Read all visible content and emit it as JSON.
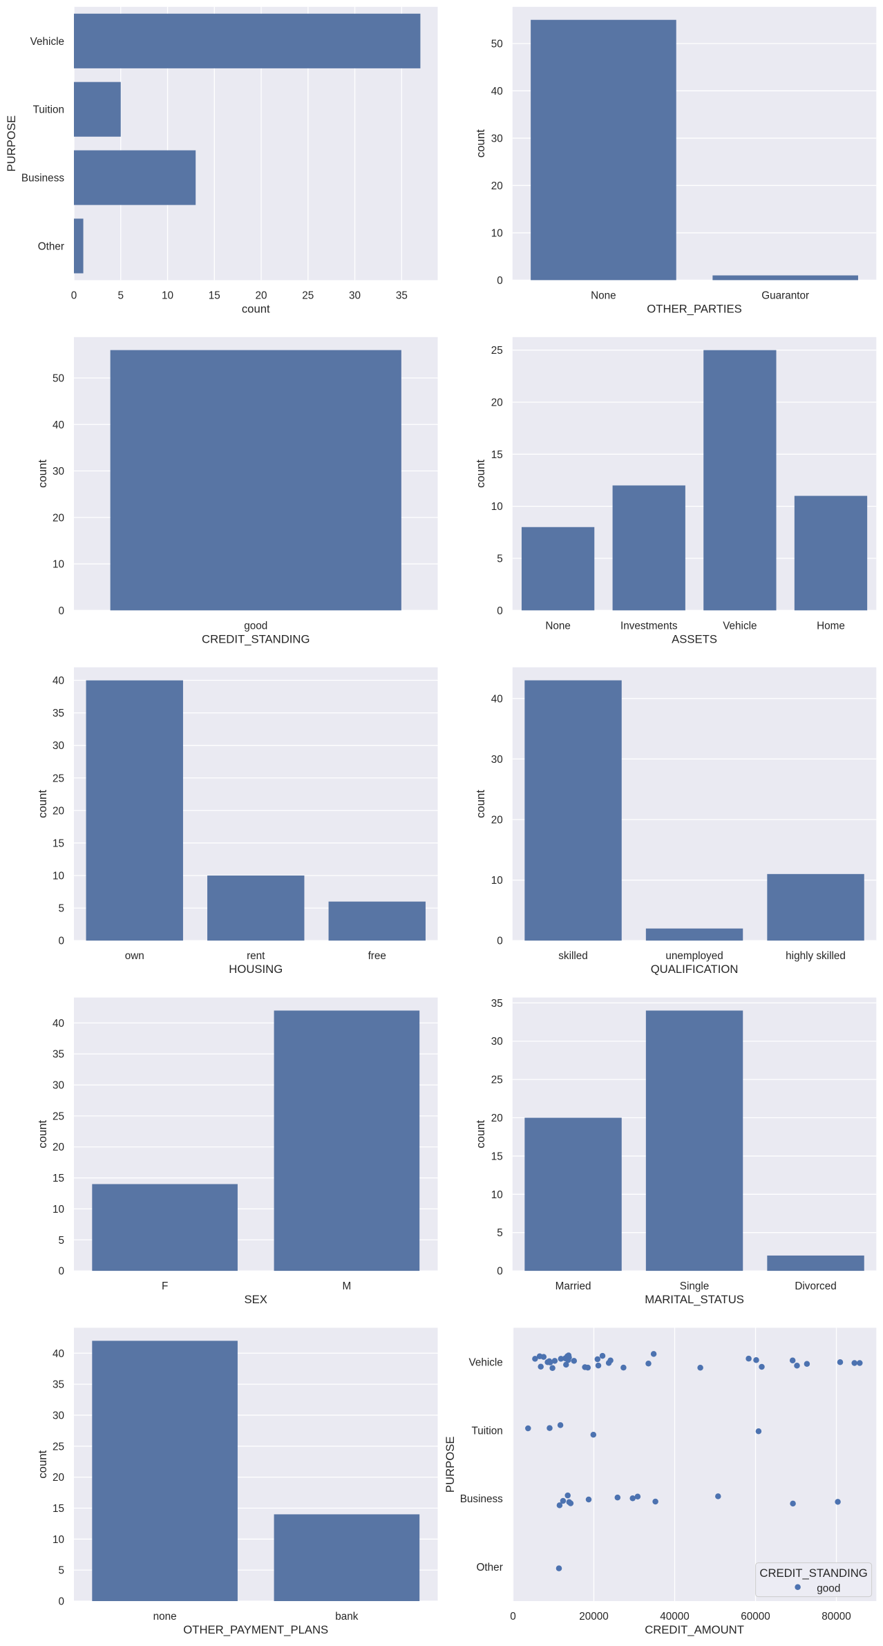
{
  "figure": {
    "kind": "seaborn-countplot-grid",
    "rows": 5,
    "cols": 2,
    "colors": {
      "figure_bg": "#ffffff",
      "axes_bg": "#eaeaf2",
      "grid": "#ffffff",
      "bar": "#5875a4",
      "point": "#4c72b0",
      "text": "#262626",
      "legend_bg": "#ececf4",
      "legend_border": "#cccccc"
    }
  },
  "chart_data": [
    {
      "type": "bar",
      "orientation": "horizontal",
      "title": "",
      "xlabel": "count",
      "ylabel": "PURPOSE",
      "categories": [
        "Vehicle",
        "Tuition",
        "Business",
        "Other"
      ],
      "values": [
        37,
        5,
        13,
        1
      ],
      "value_ticks": [
        0,
        5,
        10,
        15,
        20,
        25,
        30,
        35
      ],
      "value_lim": [
        0,
        38.85
      ],
      "grid": "vertical"
    },
    {
      "type": "bar",
      "orientation": "vertical",
      "title": "",
      "xlabel": "OTHER_PARTIES",
      "ylabel": "count",
      "categories": [
        "None",
        "Guarantor"
      ],
      "values": [
        55,
        1
      ],
      "value_ticks": [
        0,
        10,
        20,
        30,
        40,
        50
      ],
      "value_lim": [
        0,
        57.75
      ],
      "grid": "horizontal"
    },
    {
      "type": "bar",
      "orientation": "vertical",
      "title": "",
      "xlabel": "CREDIT_STANDING",
      "ylabel": "count",
      "categories": [
        "good"
      ],
      "values": [
        56
      ],
      "value_ticks": [
        0,
        10,
        20,
        30,
        40,
        50
      ],
      "value_lim": [
        0,
        58.8
      ],
      "grid": "horizontal"
    },
    {
      "type": "bar",
      "orientation": "vertical",
      "title": "",
      "xlabel": "ASSETS",
      "ylabel": "count",
      "categories": [
        "None",
        "Investments",
        "Vehicle",
        "Home"
      ],
      "values": [
        8,
        12,
        25,
        11
      ],
      "value_ticks": [
        0,
        5,
        10,
        15,
        20,
        25
      ],
      "value_lim": [
        0,
        26.25
      ],
      "grid": "horizontal"
    },
    {
      "type": "bar",
      "orientation": "vertical",
      "title": "",
      "xlabel": "HOUSING",
      "ylabel": "count",
      "categories": [
        "own",
        "rent",
        "free"
      ],
      "values": [
        40,
        10,
        6
      ],
      "value_ticks": [
        0,
        5,
        10,
        15,
        20,
        25,
        30,
        35,
        40
      ],
      "value_lim": [
        0,
        42
      ],
      "grid": "horizontal"
    },
    {
      "type": "bar",
      "orientation": "vertical",
      "title": "",
      "xlabel": "QUALIFICATION",
      "ylabel": "count",
      "categories": [
        "skilled",
        "unemployed",
        "highly skilled"
      ],
      "values": [
        43,
        2,
        11
      ],
      "value_ticks": [
        0,
        10,
        20,
        30,
        40
      ],
      "value_lim": [
        0,
        45.15
      ],
      "grid": "horizontal"
    },
    {
      "type": "bar",
      "orientation": "vertical",
      "title": "",
      "xlabel": "SEX",
      "ylabel": "count",
      "categories": [
        "F",
        "M"
      ],
      "values": [
        14,
        42
      ],
      "value_ticks": [
        0,
        5,
        10,
        15,
        20,
        25,
        30,
        35,
        40
      ],
      "value_lim": [
        0,
        44.1
      ],
      "grid": "horizontal"
    },
    {
      "type": "bar",
      "orientation": "vertical",
      "title": "",
      "xlabel": "MARITAL_STATUS",
      "ylabel": "count",
      "categories": [
        "Married",
        "Single",
        "Divorced"
      ],
      "values": [
        20,
        34,
        2
      ],
      "value_ticks": [
        0,
        5,
        10,
        15,
        20,
        25,
        30,
        35
      ],
      "value_lim": [
        0,
        35.7
      ],
      "grid": "horizontal"
    },
    {
      "type": "bar",
      "orientation": "vertical",
      "title": "",
      "xlabel": "OTHER_PAYMENT_PLANS",
      "ylabel": "count",
      "categories": [
        "none",
        "bank"
      ],
      "values": [
        42,
        14
      ],
      "value_ticks": [
        0,
        5,
        10,
        15,
        20,
        25,
        30,
        35,
        40
      ],
      "value_lim": [
        0,
        44.1
      ],
      "grid": "horizontal"
    },
    {
      "type": "scatter",
      "title": "",
      "xlabel": "CREDIT_AMOUNT",
      "ylabel": "PURPOSE",
      "categories": [
        "Vehicle",
        "Tuition",
        "Business",
        "Other"
      ],
      "x_ticks": [
        0,
        20000,
        40000,
        60000,
        80000
      ],
      "x_tick_labels": [
        "0",
        "20000",
        "40000",
        "60000",
        "80000"
      ],
      "xlim": [
        -120,
        89880
      ],
      "ylim": [
        -0.5,
        3.5
      ],
      "grid": "vertical",
      "legend": {
        "title": "CREDIT_STANDING",
        "entries": [
          {
            "label": "good",
            "color": "#4c72b0"
          }
        ],
        "position": "lower right"
      },
      "points": [
        {
          "category": "Vehicle",
          "amount": 5450,
          "jitter": -0.046
        },
        {
          "category": "Vehicle",
          "amount": 6600,
          "jitter": -0.083
        },
        {
          "category": "Vehicle",
          "amount": 7570,
          "jitter": -0.074
        },
        {
          "category": "Vehicle",
          "amount": 6870,
          "jitter": 0.068
        },
        {
          "category": "Vehicle",
          "amount": 8570,
          "jitter": 0.003
        },
        {
          "category": "Vehicle",
          "amount": 9180,
          "jitter": 0.007
        },
        {
          "category": "Vehicle",
          "amount": 8980,
          "jitter": -0.01
        },
        {
          "category": "Vehicle",
          "amount": 9760,
          "jitter": 0.089
        },
        {
          "category": "Vehicle",
          "amount": 10330,
          "jitter": -0.016
        },
        {
          "category": "Vehicle",
          "amount": 11850,
          "jitter": -0.046
        },
        {
          "category": "Vehicle",
          "amount": 12920,
          "jitter": -0.052
        },
        {
          "category": "Vehicle",
          "amount": 13440,
          "jitter": -0.083
        },
        {
          "category": "Vehicle",
          "amount": 13740,
          "jitter": -0.095
        },
        {
          "category": "Vehicle",
          "amount": 13850,
          "jitter": -0.065
        },
        {
          "category": "Vehicle",
          "amount": 13640,
          "jitter": -0.028
        },
        {
          "category": "Vehicle",
          "amount": 13130,
          "jitter": 0.04
        },
        {
          "category": "Vehicle",
          "amount": 15090,
          "jitter": -0.016
        },
        {
          "category": "Vehicle",
          "amount": 17800,
          "jitter": 0.076
        },
        {
          "category": "Vehicle",
          "amount": 18510,
          "jitter": 0.083
        },
        {
          "category": "Vehicle",
          "amount": 20910,
          "jitter": -0.04
        },
        {
          "category": "Vehicle",
          "amount": 22140,
          "jitter": -0.089
        },
        {
          "category": "Vehicle",
          "amount": 24120,
          "jitter": -0.022
        },
        {
          "category": "Vehicle",
          "amount": 23690,
          "jitter": 0.015
        },
        {
          "category": "Vehicle",
          "amount": 21110,
          "jitter": 0.052
        },
        {
          "category": "Vehicle",
          "amount": 27330,
          "jitter": 0.083
        },
        {
          "category": "Vehicle",
          "amount": 33500,
          "jitter": 0.024
        },
        {
          "category": "Vehicle",
          "amount": 34800,
          "jitter": -0.117
        },
        {
          "category": "Vehicle",
          "amount": 46340,
          "jitter": 0.084
        },
        {
          "category": "Vehicle",
          "amount": 58310,
          "jitter": -0.049
        },
        {
          "category": "Vehicle",
          "amount": 60170,
          "jitter": -0.027
        },
        {
          "category": "Vehicle",
          "amount": 61540,
          "jitter": 0.071
        },
        {
          "category": "Vehicle",
          "amount": 69180,
          "jitter": -0.023
        },
        {
          "category": "Vehicle",
          "amount": 70260,
          "jitter": 0.054
        },
        {
          "category": "Vehicle",
          "amount": 72720,
          "jitter": 0.028
        },
        {
          "category": "Vehicle",
          "amount": 80940,
          "jitter": 0.003
        },
        {
          "category": "Vehicle",
          "amount": 84480,
          "jitter": 0.016
        },
        {
          "category": "Vehicle",
          "amount": 85780,
          "jitter": 0.016
        },
        {
          "category": "Tuition",
          "amount": 3730,
          "jitter": -0.028
        },
        {
          "category": "Tuition",
          "amount": 9060,
          "jitter": -0.032
        },
        {
          "category": "Tuition",
          "amount": 11730,
          "jitter": -0.075
        },
        {
          "category": "Tuition",
          "amount": 19880,
          "jitter": 0.066
        },
        {
          "category": "Tuition",
          "amount": 60750,
          "jitter": 0.014
        },
        {
          "category": "Business",
          "amount": 11520,
          "jitter": 0.098
        },
        {
          "category": "Business",
          "amount": 12380,
          "jitter": 0.034
        },
        {
          "category": "Business",
          "amount": 13540,
          "jitter": -0.046
        },
        {
          "category": "Business",
          "amount": 13900,
          "jitter": 0.052
        },
        {
          "category": "Business",
          "amount": 14260,
          "jitter": 0.069
        },
        {
          "category": "Business",
          "amount": 18720,
          "jitter": 0.013
        },
        {
          "category": "Business",
          "amount": 25860,
          "jitter": -0.016
        },
        {
          "category": "Business",
          "amount": 29610,
          "jitter": -0.004
        },
        {
          "category": "Business",
          "amount": 30840,
          "jitter": -0.029
        },
        {
          "category": "Business",
          "amount": 35230,
          "jitter": 0.044
        },
        {
          "category": "Business",
          "amount": 50730,
          "jitter": -0.033
        },
        {
          "category": "Business",
          "amount": 69250,
          "jitter": 0.073
        },
        {
          "category": "Business",
          "amount": 80360,
          "jitter": 0.048
        },
        {
          "category": "Other",
          "amount": 11370,
          "jitter": 0.021
        }
      ]
    }
  ]
}
